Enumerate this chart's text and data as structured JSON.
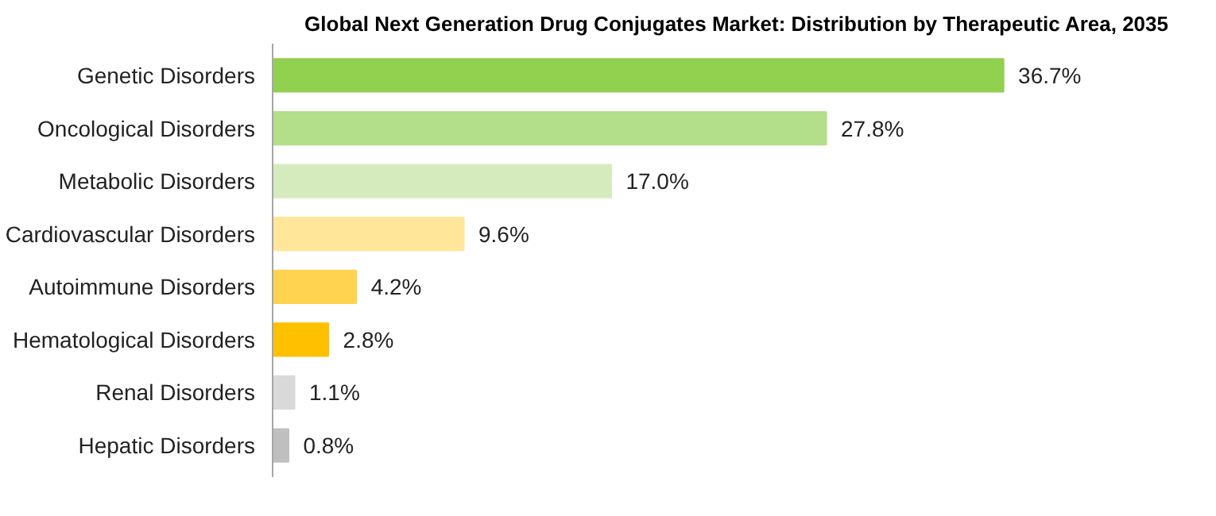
{
  "chart_data": {
    "type": "bar",
    "orientation": "horizontal",
    "title": "Global Next Generation Drug Conjugates Market: Distribution by Therapeutic Area, 2035",
    "categories": [
      "Genetic Disorders",
      "Oncological Disorders",
      "Metabolic Disorders",
      "Cardiovascular Disorders",
      "Autoimmune Disorders",
      "Hematological Disorders",
      "Renal Disorders",
      "Hepatic Disorders"
    ],
    "values": [
      36.7,
      27.8,
      17.0,
      9.6,
      4.2,
      2.8,
      1.1,
      0.8
    ],
    "value_labels": [
      "36.7%",
      "27.8%",
      "17.0%",
      "9.6%",
      "4.2%",
      "2.8%",
      "1.1%",
      "0.8%"
    ],
    "colors": [
      "#92d050",
      "#b3de8a",
      "#d5ebbd",
      "#ffe699",
      "#ffd34f",
      "#ffc000",
      "#d9d9d9",
      "#bfbfbf"
    ],
    "grid": false
  }
}
